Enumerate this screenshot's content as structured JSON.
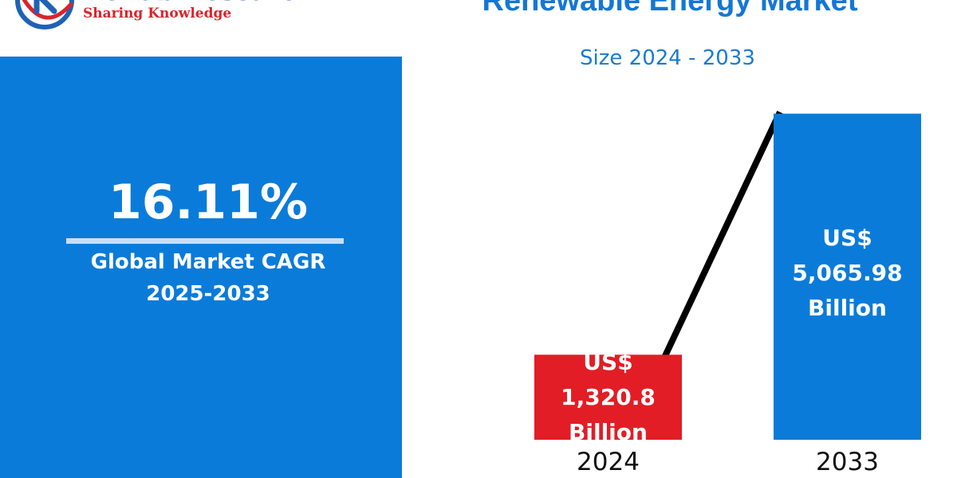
{
  "header": {
    "brand": "Renub Research",
    "tagline": "Sharing Knowledge"
  },
  "colors": {
    "brand_blue": "#1f62b5",
    "brand_red": "#d9242c",
    "panel_blue": "#0b7bd9",
    "bar_2024": "#e21d25",
    "bar_2033": "#0b7bd9",
    "trend_line": "#000000"
  },
  "cagr": {
    "value": "16.11%",
    "label_line1": "Global Market CAGR",
    "label_line2": "2025-2033"
  },
  "chart_data": {
    "type": "bar",
    "title": "Renewable Energy Market",
    "subtitle": "Size 2024 - 2033",
    "categories": [
      "2024",
      "2033"
    ],
    "values": [
      1320.8,
      5065.98
    ],
    "value_labels": [
      {
        "line1": "US$",
        "line2": "1,320.8",
        "line3": "Billion"
      },
      {
        "line1": "US$",
        "line2": "5,065.98",
        "line3": "Billion"
      }
    ],
    "unit": "US$ Billion",
    "trend_line": true,
    "grid": false,
    "legend": "none"
  }
}
